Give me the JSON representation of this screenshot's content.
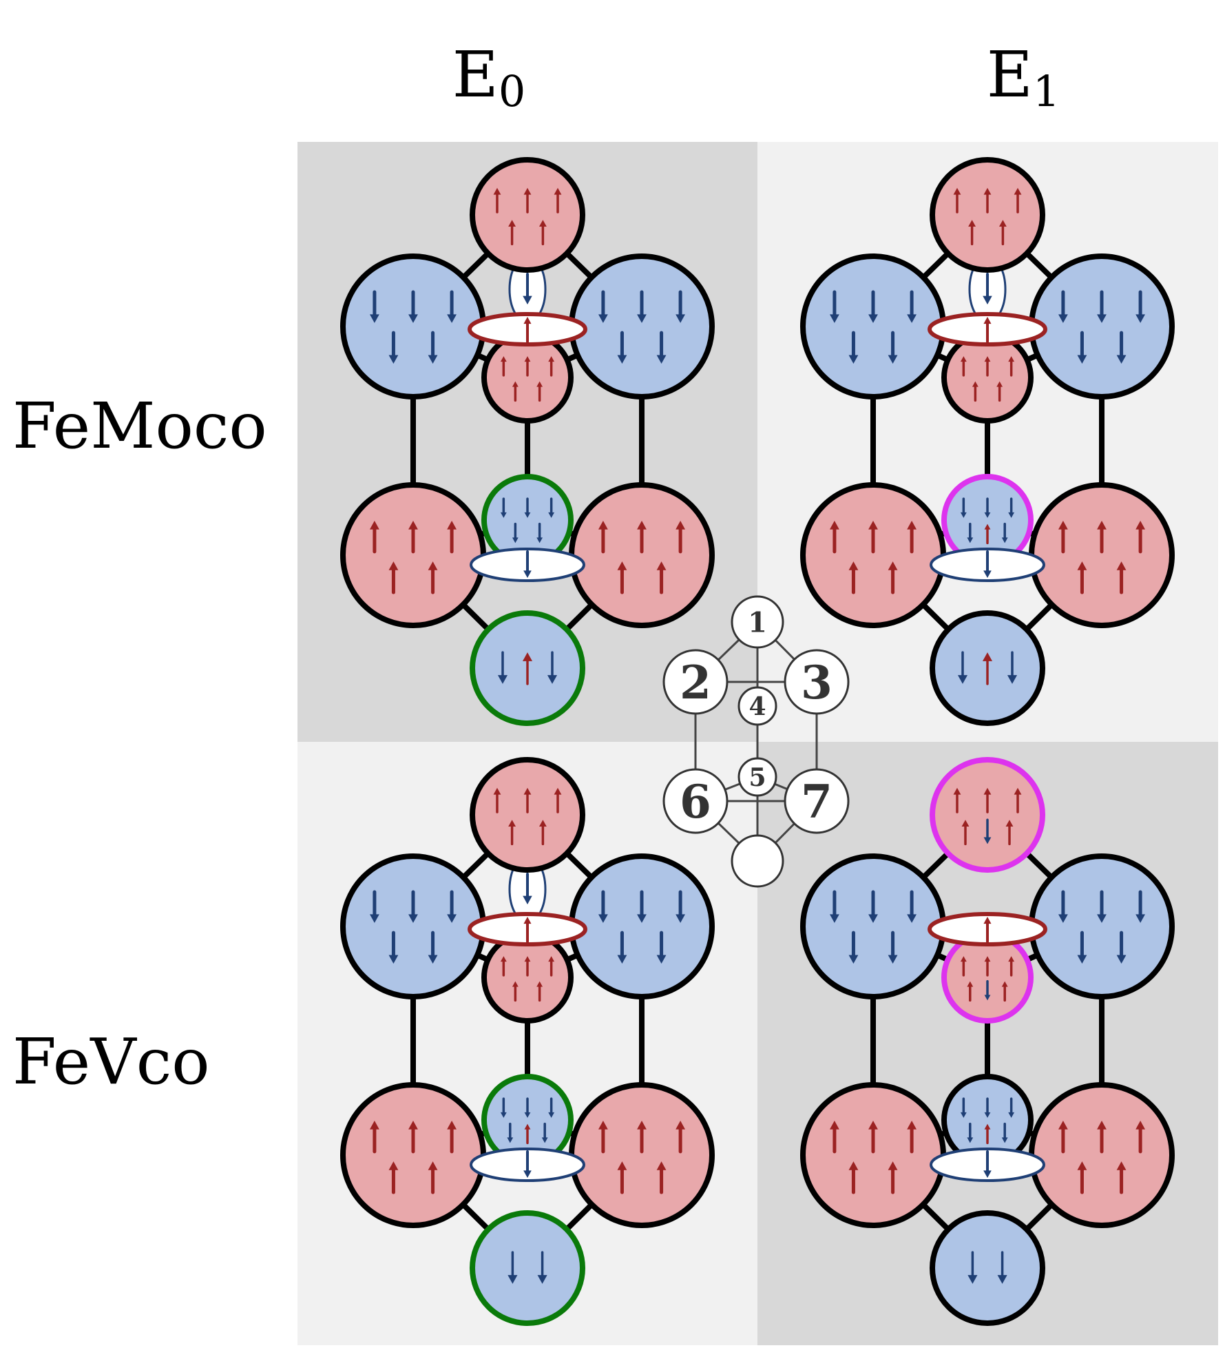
{
  "columns": [
    {
      "name": "E",
      "sub": "0"
    },
    {
      "name": "E",
      "sub": "1"
    }
  ],
  "rows": [
    "FeMoco",
    "FeVco"
  ],
  "colors": {
    "spin_up": "#9b2222",
    "spin_down": "#1f3f75",
    "up_site_fill": "#e8a8ab",
    "down_site_fill": "#aec4e6",
    "panel_dark": "#d8d8d8",
    "panel_light": "#f1f1f1",
    "highlight_green": "#0a7a0a",
    "highlight_magenta": "#dd33ee"
  },
  "key_nodes": [
    {
      "id": "k1",
      "label": "1"
    },
    {
      "id": "k2",
      "label": "2"
    },
    {
      "id": "k3",
      "label": "3"
    },
    {
      "id": "k4",
      "label": "4"
    },
    {
      "id": "k5",
      "label": "5"
    },
    {
      "id": "k6",
      "label": "6"
    },
    {
      "id": "k7",
      "label": "7"
    },
    {
      "id": "k8",
      "label": ""
    }
  ],
  "panels": [
    {
      "id": "femoco-e0",
      "shade": "dark",
      "sites": [
        {
          "site": 1,
          "spin": "up",
          "arrows": [
            "up",
            "up",
            "up",
            "up",
            "up"
          ],
          "highlight": "none"
        },
        {
          "site": 2,
          "spin": "down",
          "arrows": [
            "down",
            "down",
            "down",
            "down",
            "down"
          ],
          "highlight": "none"
        },
        {
          "site": 3,
          "spin": "down",
          "arrows": [
            "down",
            "down",
            "down",
            "down",
            "down"
          ],
          "highlight": "none"
        },
        {
          "site": 4,
          "spin": "up",
          "arrows": [
            "up",
            "up",
            "up",
            "up",
            "up"
          ],
          "highlight": "none"
        },
        {
          "site": 5,
          "spin": "down",
          "arrows": [
            "down",
            "down",
            "down",
            "down",
            "down"
          ],
          "highlight": "green"
        },
        {
          "site": 6,
          "spin": "up",
          "arrows": [
            "up",
            "up",
            "up",
            "up",
            "up"
          ],
          "highlight": "none"
        },
        {
          "site": 7,
          "spin": "up",
          "arrows": [
            "up",
            "up",
            "up",
            "up",
            "up"
          ],
          "highlight": "none"
        },
        {
          "site": 8,
          "spin": "down",
          "arrows": [
            "down",
            "up",
            "down"
          ],
          "highlight": "green"
        }
      ],
      "bond_upper": {
        "arrow": "up",
        "vertical_arrow": "down"
      },
      "bond_lower": {
        "arrow": "down"
      }
    },
    {
      "id": "femoco-e1",
      "shade": "light",
      "sites": [
        {
          "site": 1,
          "spin": "up",
          "arrows": [
            "up",
            "up",
            "up",
            "up",
            "up"
          ],
          "highlight": "none"
        },
        {
          "site": 2,
          "spin": "down",
          "arrows": [
            "down",
            "down",
            "down",
            "down",
            "down"
          ],
          "highlight": "none"
        },
        {
          "site": 3,
          "spin": "down",
          "arrows": [
            "down",
            "down",
            "down",
            "down",
            "down"
          ],
          "highlight": "none"
        },
        {
          "site": 4,
          "spin": "up",
          "arrows": [
            "up",
            "up",
            "up",
            "up",
            "up"
          ],
          "highlight": "none"
        },
        {
          "site": 5,
          "spin": "down",
          "arrows": [
            "down",
            "down",
            "down",
            "down",
            "up",
            "down"
          ],
          "highlight": "magenta"
        },
        {
          "site": 6,
          "spin": "up",
          "arrows": [
            "up",
            "up",
            "up",
            "up",
            "up"
          ],
          "highlight": "none"
        },
        {
          "site": 7,
          "spin": "up",
          "arrows": [
            "up",
            "up",
            "up",
            "up",
            "up"
          ],
          "highlight": "none"
        },
        {
          "site": 8,
          "spin": "down",
          "arrows": [
            "down",
            "up",
            "down"
          ],
          "highlight": "none"
        }
      ],
      "bond_upper": {
        "arrow": "up",
        "vertical_arrow": "down"
      },
      "bond_lower": {
        "arrow": "down"
      }
    },
    {
      "id": "fevco-e0",
      "shade": "light",
      "sites": [
        {
          "site": 1,
          "spin": "up",
          "arrows": [
            "up",
            "up",
            "up",
            "up",
            "up"
          ],
          "highlight": "none"
        },
        {
          "site": 2,
          "spin": "down",
          "arrows": [
            "down",
            "down",
            "down",
            "down",
            "down"
          ],
          "highlight": "none"
        },
        {
          "site": 3,
          "spin": "down",
          "arrows": [
            "down",
            "down",
            "down",
            "down",
            "down"
          ],
          "highlight": "none"
        },
        {
          "site": 4,
          "spin": "up",
          "arrows": [
            "up",
            "up",
            "up",
            "up",
            "up"
          ],
          "highlight": "none"
        },
        {
          "site": 5,
          "spin": "down",
          "arrows": [
            "down",
            "down",
            "down",
            "down",
            "up",
            "down"
          ],
          "highlight": "green"
        },
        {
          "site": 6,
          "spin": "up",
          "arrows": [
            "up",
            "up",
            "up",
            "up",
            "up"
          ],
          "highlight": "none"
        },
        {
          "site": 7,
          "spin": "up",
          "arrows": [
            "up",
            "up",
            "up",
            "up",
            "up"
          ],
          "highlight": "none"
        },
        {
          "site": 8,
          "spin": "down",
          "arrows": [
            "down",
            "down"
          ],
          "highlight": "green"
        }
      ],
      "bond_upper": {
        "arrow": "up",
        "vertical_arrow": "down"
      },
      "bond_lower": {
        "arrow": "down"
      }
    },
    {
      "id": "fevco-e1",
      "shade": "dark",
      "sites": [
        {
          "site": 1,
          "spin": "up",
          "arrows": [
            "up",
            "up",
            "up",
            "up",
            "down",
            "up"
          ],
          "highlight": "magenta"
        },
        {
          "site": 2,
          "spin": "down",
          "arrows": [
            "down",
            "down",
            "down",
            "down",
            "down"
          ],
          "highlight": "none"
        },
        {
          "site": 3,
          "spin": "down",
          "arrows": [
            "down",
            "down",
            "down",
            "down",
            "down"
          ],
          "highlight": "none"
        },
        {
          "site": 4,
          "spin": "up",
          "arrows": [
            "up",
            "up",
            "up",
            "up",
            "down",
            "up"
          ],
          "highlight": "magenta"
        },
        {
          "site": 5,
          "spin": "down",
          "arrows": [
            "down",
            "down",
            "down",
            "down",
            "up",
            "down"
          ],
          "highlight": "none"
        },
        {
          "site": 6,
          "spin": "up",
          "arrows": [
            "up",
            "up",
            "up",
            "up",
            "up"
          ],
          "highlight": "none"
        },
        {
          "site": 7,
          "spin": "up",
          "arrows": [
            "up",
            "up",
            "up",
            "up",
            "up"
          ],
          "highlight": "none"
        },
        {
          "site": 8,
          "spin": "down",
          "arrows": [
            "down",
            "down"
          ],
          "highlight": "none"
        }
      ],
      "bond_upper": {
        "arrow": "up",
        "vertical_arrow": "none"
      },
      "bond_lower": {
        "arrow": "down"
      }
    }
  ]
}
